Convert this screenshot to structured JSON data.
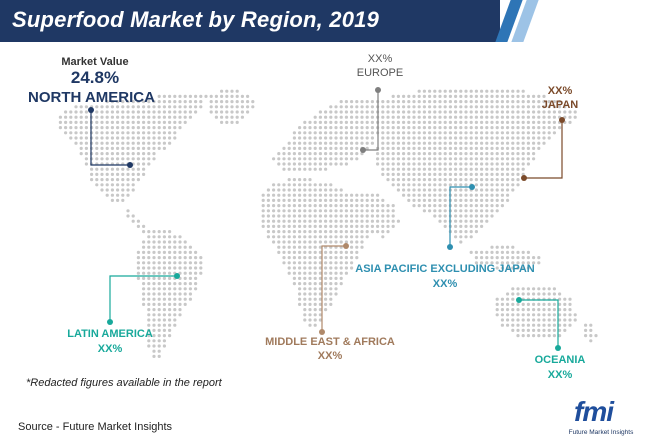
{
  "header": {
    "title": "Superfood Market by Region, 2019",
    "bar_color": "#1f3864",
    "stripe_colors": [
      "#2e75b6",
      "#9dc3e6"
    ]
  },
  "north_america": {
    "caption": "Market Value",
    "value": "24.8%",
    "name": "NORTH AMERICA",
    "color": "#1f3864"
  },
  "regions": [
    {
      "id": "europe",
      "value": "XX%",
      "name": "EUROPE",
      "color": "#7f7f7f"
    },
    {
      "id": "japan",
      "value": "XX%",
      "name": "JAPAN",
      "color": "#7b4a2a"
    },
    {
      "id": "asia-pacific",
      "name": "ASIA PACIFIC EXCLUDING JAPAN",
      "value": "XX%",
      "color": "#2e8fb0"
    },
    {
      "id": "latin-america",
      "name": "LATIN AMERICA",
      "value": "XX%",
      "color": "#18a99b"
    },
    {
      "id": "middle-east-africa",
      "name": "MIDDLE EAST & AFRICA",
      "value": "XX%",
      "color": "#b0896a"
    },
    {
      "id": "oceania",
      "name": "OCEANIA",
      "value": "XX%",
      "color": "#18a99b"
    }
  ],
  "note": "*Redacted figures available in the report",
  "source": "Source - Future Market Insights",
  "logo": {
    "mark": "fmi",
    "text": "Future Market Insights"
  },
  "map_dot_color": "#c8c8c8"
}
